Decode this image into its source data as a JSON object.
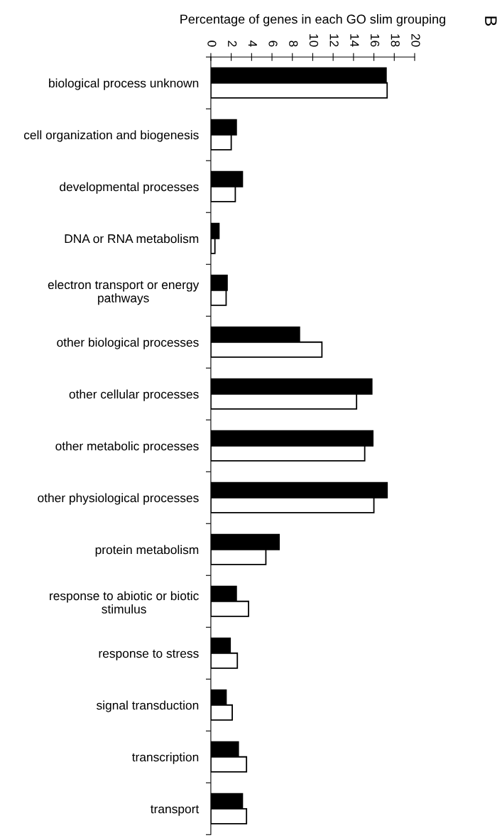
{
  "chart_data": {
    "type": "bar",
    "orientation": "horizontal",
    "xlabel": "Percentage of genes in each GO slim grouping",
    "annotations": [
      "B"
    ],
    "categories": [
      "biological process unknown",
      "cell organization and biogenesis",
      "developmental processes",
      "DNA or RNA metabolism",
      "electron transport or energy\npathways",
      "other biological processes",
      "other cellular processes",
      "other metabolic processes",
      "other physiological processes",
      "protein metabolism",
      "response to abiotic or biotic\nstimulus",
      "response to stress",
      "signal transduction",
      "transcription",
      "transport"
    ],
    "series": [
      {
        "color": "#000000",
        "values": [
          17.2,
          2.5,
          3.1,
          0.8,
          1.6,
          8.7,
          15.8,
          15.9,
          17.3,
          6.7,
          2.5,
          1.9,
          1.5,
          2.7,
          3.1
        ]
      },
      {
        "color": "#ffffff",
        "values": [
          17.3,
          2.0,
          2.4,
          0.4,
          1.5,
          10.9,
          14.3,
          15.1,
          16.0,
          5.4,
          3.7,
          2.6,
          2.1,
          3.5,
          3.5
        ]
      }
    ],
    "xlim": [
      0,
      20
    ],
    "xticks": [
      0,
      2,
      4,
      6,
      8,
      10,
      12,
      14,
      16,
      18,
      20
    ]
  }
}
